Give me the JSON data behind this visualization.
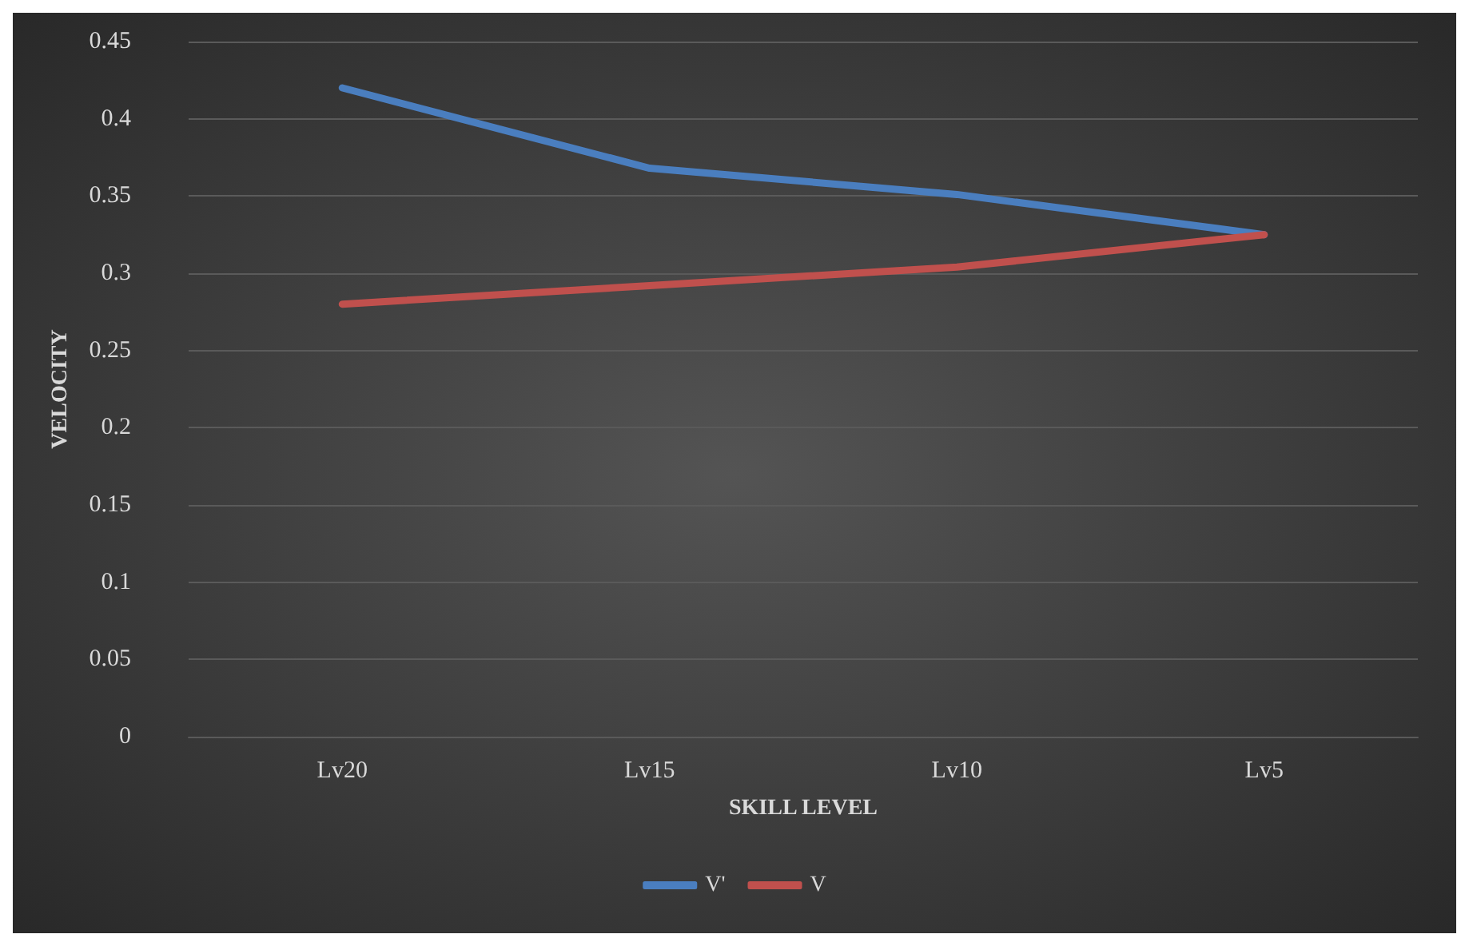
{
  "chart_data": {
    "type": "line",
    "xlabel": "SKILL LEVEL",
    "ylabel": "VELOCITY",
    "categories": [
      "Lv20",
      "Lv15",
      "Lv10",
      "Lv5"
    ],
    "series": [
      {
        "name": "V'",
        "color": "#4a7ebf",
        "values": [
          0.42,
          0.368,
          0.351,
          0.325
        ]
      },
      {
        "name": "V",
        "color": "#c0504d",
        "values": [
          0.28,
          0.292,
          0.304,
          0.325
        ]
      }
    ],
    "ylim": [
      0,
      0.45
    ],
    "yticks": [
      0,
      0.05,
      0.1,
      0.15,
      0.2,
      0.25,
      0.3,
      0.35,
      0.4,
      0.45
    ],
    "grid": "y",
    "legend": "bottom",
    "marker": "none",
    "line_style": "solid"
  }
}
